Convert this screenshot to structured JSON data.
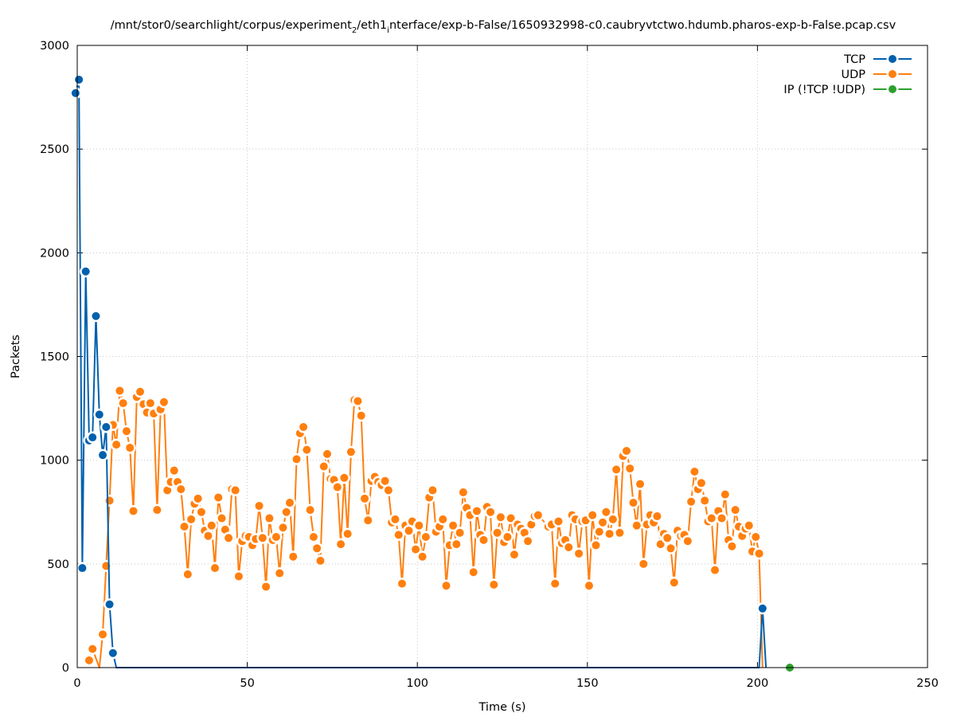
{
  "chart_data": {
    "type": "line",
    "title": "/mnt/stor0/searchlight/corpus/experiment",
    "title_sub1": "2",
    "title_mid": "/eth1",
    "title_sub2": "i",
    "title_end": "nterface/exp-b-False/1650932998-c0.caubryvtctwo.hdumb.pharos-exp-b-False.pcap.csv",
    "xlabel": "Time (s)",
    "ylabel": "Packets",
    "xlim": [
      0,
      250
    ],
    "ylim": [
      0,
      3000
    ],
    "xticks": [
      0,
      50,
      100,
      150,
      200,
      250
    ],
    "yticks": [
      0,
      500,
      1000,
      1500,
      2000,
      2500,
      3000
    ],
    "grid": true,
    "legend_position": "top-right",
    "series": [
      {
        "name": "TCP",
        "color": "#0060ad",
        "points": [
          [
            -0.5,
            2770
          ],
          [
            0.5,
            2835
          ],
          [
            1.5,
            480
          ],
          [
            2.5,
            1910
          ],
          [
            3.5,
            1095
          ],
          [
            4.5,
            1110
          ],
          [
            5.5,
            1695
          ],
          [
            6.5,
            1220
          ],
          [
            7.5,
            1025
          ],
          [
            8.5,
            1160
          ],
          [
            9.5,
            305
          ],
          [
            10.5,
            70
          ],
          [
            11.5,
            0
          ],
          [
            200.5,
            0
          ],
          [
            201.5,
            285
          ],
          [
            202.5,
            0
          ]
        ]
      },
      {
        "name": "UDP",
        "color": "#ff7f0e",
        "points": [
          [
            3.5,
            35
          ],
          [
            4.5,
            90
          ],
          [
            6.5,
            0
          ],
          [
            7.5,
            160
          ],
          [
            8.5,
            490
          ],
          [
            9.5,
            805
          ],
          [
            10.5,
            1170
          ],
          [
            11.5,
            1075
          ],
          [
            12.5,
            1335
          ],
          [
            13.5,
            1275
          ],
          [
            14.5,
            1140
          ],
          [
            15.5,
            1060
          ],
          [
            16.5,
            755
          ],
          [
            17.5,
            1305
          ],
          [
            18.5,
            1330
          ],
          [
            19.5,
            1270
          ],
          [
            20.5,
            1230
          ],
          [
            21.5,
            1275
          ],
          [
            22.5,
            1225
          ],
          [
            23.5,
            760
          ],
          [
            24.5,
            1245
          ],
          [
            25.5,
            1280
          ],
          [
            26.5,
            855
          ],
          [
            27.5,
            895
          ],
          [
            28.5,
            950
          ],
          [
            29.5,
            895
          ],
          [
            30.5,
            860
          ],
          [
            31.5,
            680
          ],
          [
            32.5,
            450
          ],
          [
            33.5,
            715
          ],
          [
            34.5,
            790
          ],
          [
            35.5,
            815
          ],
          [
            36.5,
            750
          ],
          [
            37.5,
            660
          ],
          [
            38.5,
            635
          ],
          [
            39.5,
            685
          ],
          [
            40.5,
            480
          ],
          [
            41.5,
            820
          ],
          [
            42.5,
            720
          ],
          [
            43.5,
            665
          ],
          [
            44.5,
            625
          ],
          [
            45.5,
            860
          ],
          [
            46.5,
            855
          ],
          [
            47.5,
            440
          ],
          [
            48.5,
            610
          ],
          [
            49.5,
            635
          ],
          [
            50.5,
            630
          ],
          [
            51.5,
            590
          ],
          [
            52.5,
            620
          ],
          [
            53.5,
            780
          ],
          [
            54.5,
            625
          ],
          [
            55.5,
            390
          ],
          [
            56.5,
            720
          ],
          [
            57.5,
            615
          ],
          [
            58.5,
            630
          ],
          [
            59.5,
            455
          ],
          [
            60.5,
            675
          ],
          [
            61.5,
            750
          ],
          [
            62.5,
            795
          ],
          [
            63.5,
            535
          ],
          [
            64.5,
            1005
          ],
          [
            65.5,
            1130
          ],
          [
            66.5,
            1160
          ],
          [
            67.5,
            1050
          ],
          [
            68.5,
            760
          ],
          [
            69.5,
            630
          ],
          [
            70.5,
            575
          ],
          [
            71.5,
            515
          ],
          [
            72.5,
            970
          ],
          [
            73.5,
            1030
          ],
          [
            74.5,
            910
          ],
          [
            75.5,
            905
          ],
          [
            76.5,
            870
          ],
          [
            77.5,
            595
          ],
          [
            78.5,
            915
          ],
          [
            79.5,
            645
          ],
          [
            80.5,
            1040
          ],
          [
            81.5,
            1290
          ],
          [
            82.5,
            1285
          ],
          [
            83.5,
            1215
          ],
          [
            84.5,
            815
          ],
          [
            85.5,
            710
          ],
          [
            86.5,
            900
          ],
          [
            87.5,
            920
          ],
          [
            88.5,
            895
          ],
          [
            89.5,
            880
          ],
          [
            90.5,
            900
          ],
          [
            91.5,
            855
          ],
          [
            92.5,
            700
          ],
          [
            93.5,
            715
          ],
          [
            94.5,
            640
          ],
          [
            95.5,
            405
          ],
          [
            96.5,
            685
          ],
          [
            97.5,
            660
          ],
          [
            98.5,
            705
          ],
          [
            99.5,
            570
          ],
          [
            100.5,
            685
          ],
          [
            101.5,
            535
          ],
          [
            102.5,
            630
          ],
          [
            103.5,
            820
          ],
          [
            104.5,
            855
          ],
          [
            105.5,
            655
          ],
          [
            106.5,
            680
          ],
          [
            107.5,
            715
          ],
          [
            108.5,
            395
          ],
          [
            109.5,
            590
          ],
          [
            110.5,
            685
          ],
          [
            111.5,
            595
          ],
          [
            112.5,
            650
          ],
          [
            113.5,
            845
          ],
          [
            114.5,
            770
          ],
          [
            115.5,
            735
          ],
          [
            116.5,
            460
          ],
          [
            117.5,
            755
          ],
          [
            118.5,
            640
          ],
          [
            119.5,
            615
          ],
          [
            120.5,
            775
          ],
          [
            121.5,
            750
          ],
          [
            122.5,
            400
          ],
          [
            123.5,
            650
          ],
          [
            124.5,
            725
          ],
          [
            125.5,
            605
          ],
          [
            126.5,
            630
          ],
          [
            127.5,
            720
          ],
          [
            128.5,
            545
          ],
          [
            129.5,
            690
          ],
          [
            130.5,
            670
          ],
          [
            131.5,
            650
          ],
          [
            132.5,
            610
          ],
          [
            133.5,
            690
          ],
          [
            134.5,
            730
          ],
          [
            135.5,
            735
          ],
          [
            138.5,
            680
          ],
          [
            139.5,
            690
          ],
          [
            140.5,
            405
          ],
          [
            141.5,
            705
          ],
          [
            142.5,
            600
          ],
          [
            143.5,
            615
          ],
          [
            144.5,
            580
          ],
          [
            145.5,
            735
          ],
          [
            146.5,
            715
          ],
          [
            147.5,
            550
          ],
          [
            148.5,
            705
          ],
          [
            149.5,
            710
          ],
          [
            150.5,
            395
          ],
          [
            151.5,
            735
          ],
          [
            152.5,
            590
          ],
          [
            153.5,
            655
          ],
          [
            154.5,
            700
          ],
          [
            155.5,
            750
          ],
          [
            156.5,
            645
          ],
          [
            157.5,
            715
          ],
          [
            158.5,
            955
          ],
          [
            159.5,
            650
          ],
          [
            160.5,
            1020
          ],
          [
            161.5,
            1045
          ],
          [
            162.5,
            960
          ],
          [
            163.5,
            795
          ],
          [
            164.5,
            685
          ],
          [
            165.5,
            885
          ],
          [
            166.5,
            500
          ],
          [
            167.5,
            690
          ],
          [
            168.5,
            735
          ],
          [
            169.5,
            700
          ],
          [
            170.5,
            730
          ],
          [
            171.5,
            595
          ],
          [
            172.5,
            645
          ],
          [
            173.5,
            625
          ],
          [
            174.5,
            575
          ],
          [
            175.5,
            410
          ],
          [
            176.5,
            660
          ],
          [
            177.5,
            635
          ],
          [
            178.5,
            640
          ],
          [
            179.5,
            610
          ],
          [
            180.5,
            800
          ],
          [
            181.5,
            945
          ],
          [
            182.5,
            860
          ],
          [
            183.5,
            890
          ],
          [
            184.5,
            805
          ],
          [
            185.5,
            705
          ],
          [
            186.5,
            720
          ],
          [
            187.5,
            470
          ],
          [
            188.5,
            755
          ],
          [
            189.5,
            720
          ],
          [
            190.5,
            835
          ],
          [
            191.5,
            615
          ],
          [
            192.5,
            585
          ],
          [
            193.5,
            760
          ],
          [
            194.5,
            680
          ],
          [
            195.5,
            635
          ],
          [
            196.5,
            670
          ],
          [
            197.5,
            685
          ],
          [
            198.5,
            560
          ],
          [
            199.5,
            630
          ],
          [
            200.5,
            550
          ],
          [
            201.5,
            0
          ]
        ]
      },
      {
        "name": "IP (!TCP  !UDP)",
        "color": "#2ca02c",
        "points": [
          [
            209.5,
            0
          ]
        ]
      }
    ]
  }
}
